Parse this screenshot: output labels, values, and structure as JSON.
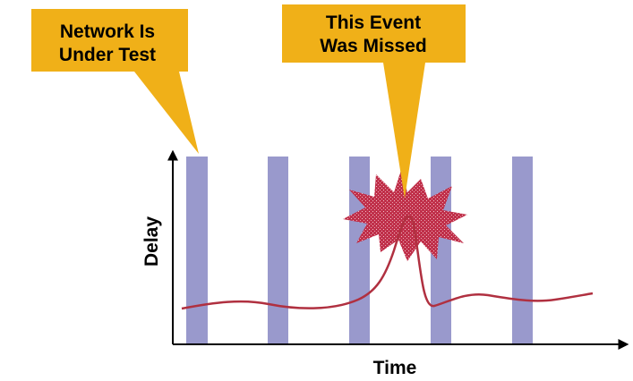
{
  "callouts": [
    {
      "lines": [
        "Network Is",
        "Under Test"
      ]
    },
    {
      "lines": [
        "This Event",
        "Was Missed"
      ]
    }
  ],
  "axes": {
    "y_label": "Delay",
    "x_label": "Time"
  }
}
